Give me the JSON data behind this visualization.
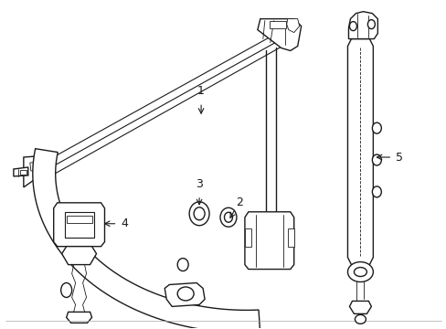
{
  "bg_color": "#ffffff",
  "line_color": "#1a1a1a",
  "lw": 1.0,
  "tlw": 0.6,
  "fig_width": 4.89,
  "fig_height": 3.6,
  "dpi": 100
}
